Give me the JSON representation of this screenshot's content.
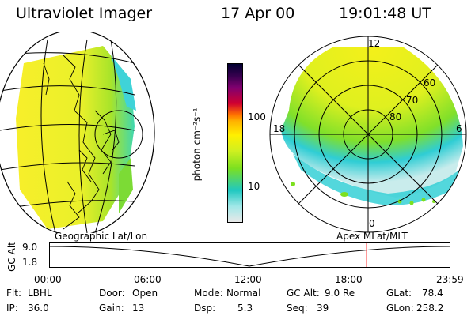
{
  "header": {
    "title": "Ultraviolet Imager",
    "date": "17 Apr 00",
    "time": "19:01:48 UT"
  },
  "colorbar": {
    "label": "photon cm⁻²s⁻¹",
    "ticks": [
      "100",
      "10"
    ]
  },
  "polar": {
    "lat_labels": [
      "60",
      "70",
      "80"
    ],
    "mlt_labels": {
      "top": "12",
      "left": "18",
      "right": "6",
      "bottom": "0"
    }
  },
  "panel_labels": {
    "left": "Geographic Lat/Lon",
    "right": "Apex MLat/MLT"
  },
  "altitude_plot": {
    "ylabel": "GC Alt",
    "yticks": [
      "9.0",
      "1.8"
    ],
    "xticks": [
      "00:00",
      "06:00",
      "12:00",
      "18:00",
      "23:59"
    ],
    "current_time_fraction": 0.7928
  },
  "info": {
    "flt_label": "Flt:",
    "flt_value": "LBHL",
    "ip_label": "IP:",
    "ip_value": "36.0",
    "door_label": "Door:",
    "door_value": "Open",
    "gain_label": "Gain:",
    "gain_value": "13",
    "mode_label": "Mode:",
    "mode_value": "Normal",
    "dsp_label": "Dsp:",
    "dsp_value": "5.3",
    "gcalt_label": "GC Alt:",
    "gcalt_value": "9.0 Re",
    "seq_label": "Seq:",
    "seq_value": "39",
    "glat_label": "GLat:",
    "glat_value": "78.4",
    "glon_label": "GLon:",
    "glon_value": "258.2"
  },
  "colors": {
    "marker": "#ff0000",
    "yellow": "#f4f21a",
    "green": "#7fe01e",
    "cyan": "#35d0d6"
  }
}
